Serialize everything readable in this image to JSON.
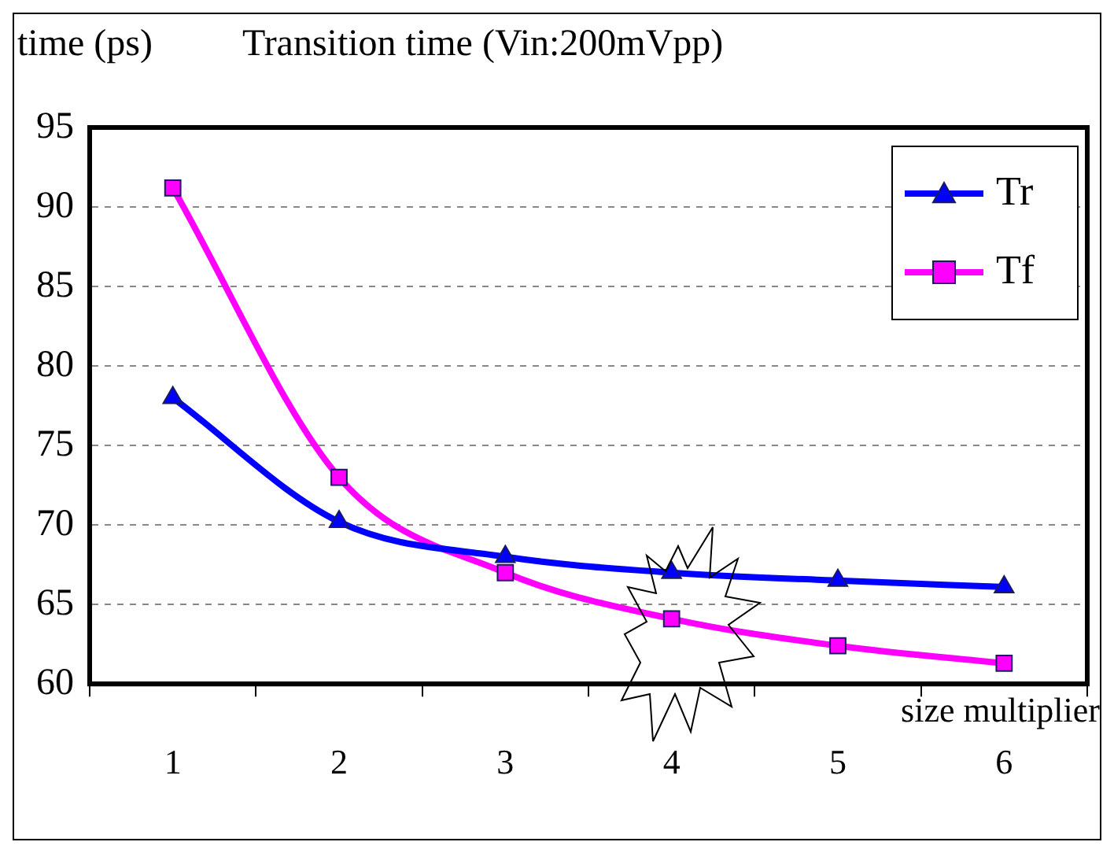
{
  "chart_data": {
    "type": "line",
    "title": "Transition time (Vin:200mVpp)",
    "xlabel": "size multiplier",
    "ylabel": "time (ps)",
    "categories": [
      "1",
      "2",
      "3",
      "4",
      "5",
      "6"
    ],
    "series": [
      {
        "name": "Tr",
        "color": "#0000ff",
        "marker": "triangle",
        "values": [
          78,
          70.2,
          68,
          67,
          66.5,
          66.1
        ]
      },
      {
        "name": "Tf",
        "color": "#ff00ff",
        "marker": "square",
        "values": [
          91.2,
          73,
          67,
          64.1,
          62.4,
          61.3
        ]
      }
    ],
    "ylim": [
      60,
      95
    ],
    "yticks": [
      60,
      65,
      70,
      75,
      80,
      85,
      90,
      95
    ],
    "grid": "y",
    "legend": "top right"
  }
}
